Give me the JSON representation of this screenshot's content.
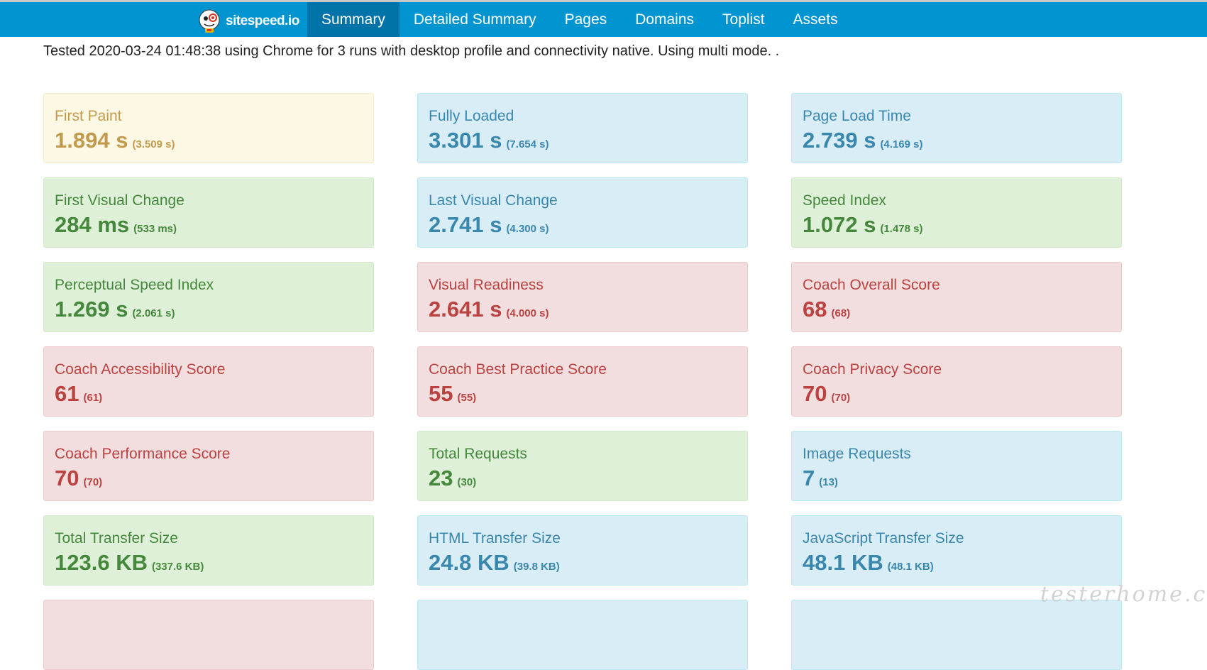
{
  "header": {
    "brand": "sitespeed.io",
    "logo_icon": "sitespeed-logo-icon",
    "tabs": [
      {
        "label": "Summary",
        "active": true
      },
      {
        "label": "Detailed Summary",
        "active": false
      },
      {
        "label": "Pages",
        "active": false
      },
      {
        "label": "Domains",
        "active": false
      },
      {
        "label": "Toplist",
        "active": false
      },
      {
        "label": "Assets",
        "active": false
      }
    ],
    "colors": {
      "bar": "#0095d0",
      "active_tab": "#0073a8"
    }
  },
  "test_info": "Tested 2020-03-24 01:48:38 using Chrome for 3 runs with desktop profile and connectivity native. Using multi mode.  .",
  "status_colors": {
    "warning": "#fcf8e3",
    "ok": "#dff0d8",
    "info": "#d9edf7",
    "error": "#f2dede"
  },
  "metrics": [
    {
      "title": "First Paint",
      "value": "1.894 s",
      "sub": "(3.509 s)",
      "status": "warning"
    },
    {
      "title": "Fully Loaded",
      "value": "3.301 s",
      "sub": "(7.654 s)",
      "status": "info"
    },
    {
      "title": "Page Load Time",
      "value": "2.739 s",
      "sub": "(4.169 s)",
      "status": "info"
    },
    {
      "title": "First Visual Change",
      "value": "284 ms",
      "sub": "(533 ms)",
      "status": "ok"
    },
    {
      "title": "Last Visual Change",
      "value": "2.741 s",
      "sub": "(4.300 s)",
      "status": "info"
    },
    {
      "title": "Speed Index",
      "value": "1.072 s",
      "sub": "(1.478 s)",
      "status": "ok"
    },
    {
      "title": "Perceptual Speed Index",
      "value": "1.269 s",
      "sub": "(2.061 s)",
      "status": "ok"
    },
    {
      "title": "Visual Readiness",
      "value": "2.641 s",
      "sub": "(4.000 s)",
      "status": "error"
    },
    {
      "title": "Coach Overall Score",
      "value": "68",
      "sub": "(68)",
      "status": "error"
    },
    {
      "title": "Coach Accessibility Score",
      "value": "61",
      "sub": "(61)",
      "status": "error"
    },
    {
      "title": "Coach Best Practice Score",
      "value": "55",
      "sub": "(55)",
      "status": "error"
    },
    {
      "title": "Coach Privacy Score",
      "value": "70",
      "sub": "(70)",
      "status": "error"
    },
    {
      "title": "Coach Performance Score",
      "value": "70",
      "sub": "(70)",
      "status": "error"
    },
    {
      "title": "Total Requests",
      "value": "23",
      "sub": "(30)",
      "status": "ok"
    },
    {
      "title": "Image Requests",
      "value": "7",
      "sub": "(13)",
      "status": "info"
    },
    {
      "title": "Total Transfer Size",
      "value": "123.6 KB",
      "sub": "(337.6 KB)",
      "status": "ok"
    },
    {
      "title": "HTML Transfer Size",
      "value": "24.8 KB",
      "sub": "(39.8 KB)",
      "status": "info"
    },
    {
      "title": "JavaScript Transfer Size",
      "value": "48.1 KB",
      "sub": "(48.1 KB)",
      "status": "info"
    },
    {
      "title": "",
      "value": "",
      "sub": "",
      "status": "error"
    },
    {
      "title": "",
      "value": "",
      "sub": "",
      "status": "info"
    },
    {
      "title": "",
      "value": "",
      "sub": "",
      "status": "info"
    }
  ],
  "watermark": "testerhome.com"
}
